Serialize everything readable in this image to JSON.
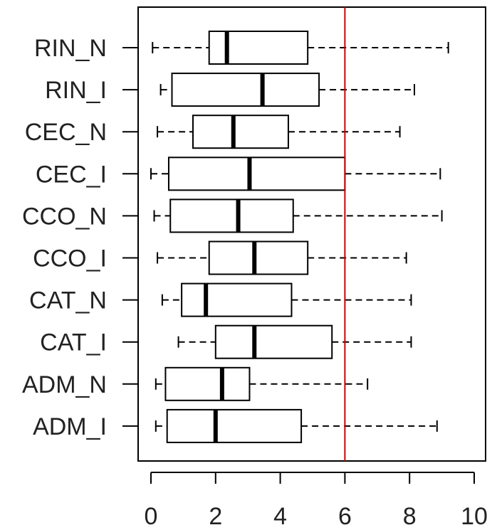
{
  "chart_data": {
    "type": "boxplot",
    "orientation": "horizontal",
    "title": "",
    "xlabel": "",
    "ylabel": "",
    "xlim": [
      -0.4,
      10.4
    ],
    "xticks": [
      0,
      2,
      4,
      6,
      8,
      10
    ],
    "xtick_labels": [
      "0",
      "2",
      "4",
      "6",
      "8",
      "10"
    ],
    "categories": [
      "RIN_N",
      "RIN_I",
      "CEC_N",
      "CEC_I",
      "CCO_N",
      "CCO_I",
      "CAT_N",
      "CAT_I",
      "ADM_N",
      "ADM_I"
    ],
    "boxes": [
      {
        "label": "RIN_N",
        "min": 0.05,
        "q1": 1.8,
        "median": 2.35,
        "q3": 4.85,
        "max": 9.2
      },
      {
        "label": "RIN_I",
        "min": 0.3,
        "q1": 0.65,
        "median": 3.45,
        "q3": 5.2,
        "max": 8.15
      },
      {
        "label": "CEC_N",
        "min": 0.2,
        "q1": 1.3,
        "median": 2.55,
        "q3": 4.25,
        "max": 7.7
      },
      {
        "label": "CEC_I",
        "min": 0.0,
        "q1": 0.55,
        "median": 3.05,
        "q3": 6.0,
        "max": 8.95
      },
      {
        "label": "CCO_N",
        "min": 0.1,
        "q1": 0.6,
        "median": 2.7,
        "q3": 4.4,
        "max": 9.0
      },
      {
        "label": "CCO_I",
        "min": 0.2,
        "q1": 1.8,
        "median": 3.2,
        "q3": 4.85,
        "max": 7.9
      },
      {
        "label": "CAT_N",
        "min": 0.35,
        "q1": 0.95,
        "median": 1.7,
        "q3": 4.35,
        "max": 8.05
      },
      {
        "label": "CAT_I",
        "min": 0.85,
        "q1": 2.0,
        "median": 3.2,
        "q3": 5.6,
        "max": 8.05
      },
      {
        "label": "ADM_N",
        "min": 0.15,
        "q1": 0.45,
        "median": 2.2,
        "q3": 3.05,
        "max": 6.7
      },
      {
        "label": "ADM_I",
        "min": 0.15,
        "q1": 0.5,
        "median": 2.0,
        "q3": 4.65,
        "max": 8.85
      }
    ],
    "reference_line": {
      "x": 6.0,
      "color": "#cc0000"
    },
    "grid": false,
    "legend": "none"
  },
  "colors": {
    "box_stroke": "#000000",
    "box_fill": "#ffffff",
    "reference": "#cc0000"
  }
}
